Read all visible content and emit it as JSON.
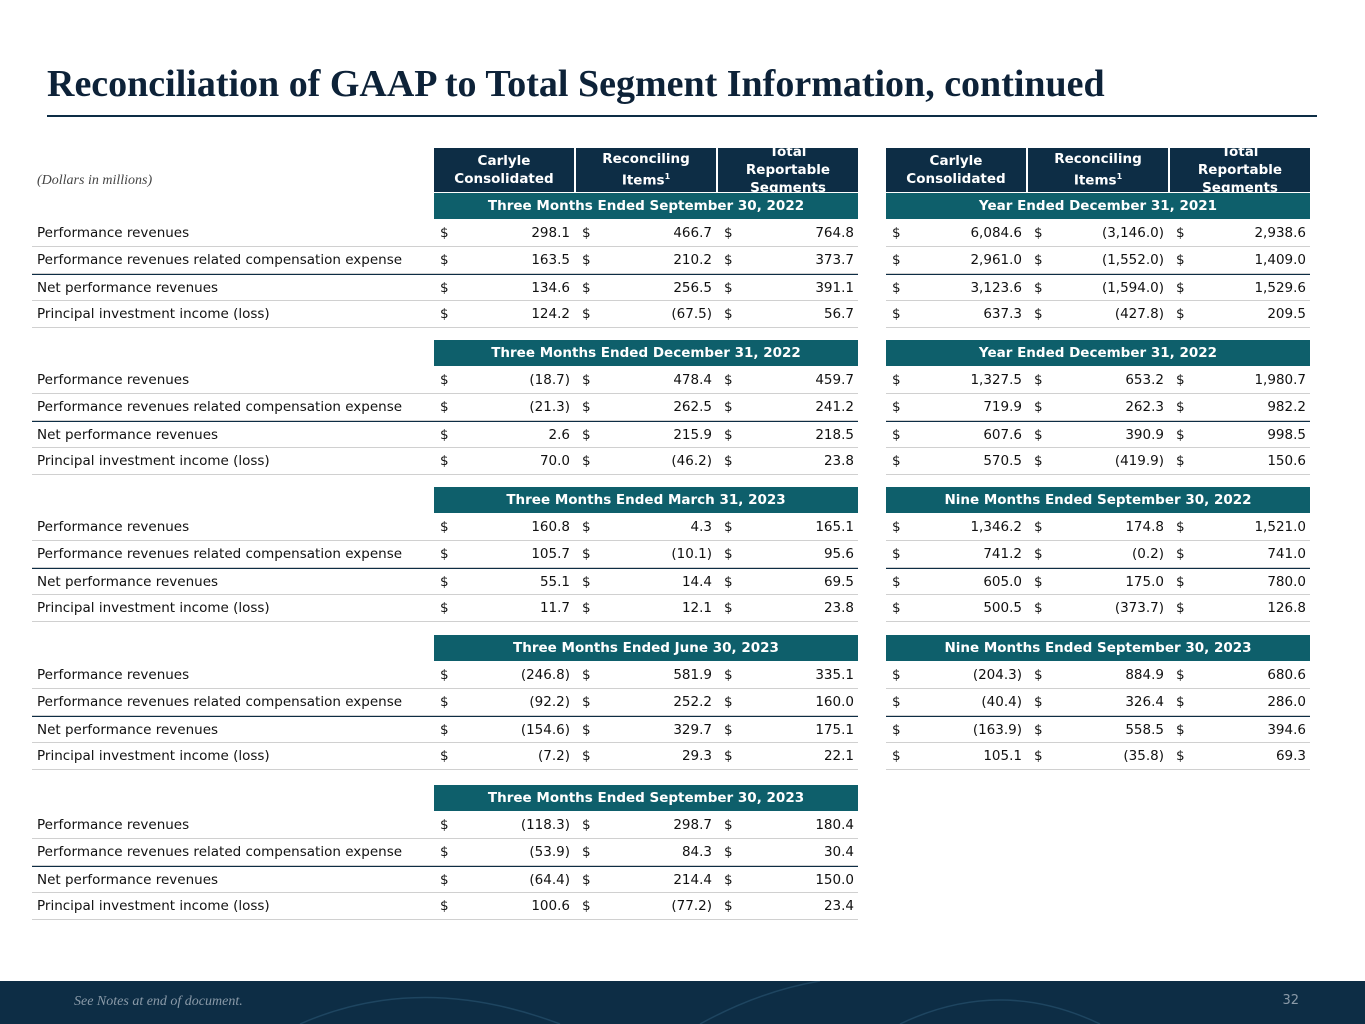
{
  "title": "Reconciliation of GAAP to Total Segment Information, continued",
  "units_note": "(Dollars in millions)",
  "columns": [
    "Carlyle Consolidated",
    "Reconciling Items",
    "Total Reportable Segments"
  ],
  "column_footnote": {
    "column": 1,
    "mark": "1"
  },
  "currency": "$",
  "left_blocks": [
    {
      "period": "Three Months Ended September 30, 2022",
      "rows": [
        {
          "label": "Performance revenues",
          "values": [
            "298.1",
            "466.7",
            "764.8"
          ]
        },
        {
          "label": "Performance revenues related compensation expense",
          "values": [
            "163.5",
            "210.2",
            "373.7"
          ]
        },
        {
          "label": "Net performance revenues",
          "values": [
            "134.6",
            "256.5",
            "391.1"
          ]
        },
        {
          "label": "Principal investment income (loss)",
          "values": [
            "124.2",
            "(67.5)",
            "56.7"
          ]
        }
      ]
    },
    {
      "period": "Three Months Ended December 31, 2022",
      "rows": [
        {
          "label": "Performance revenues",
          "values": [
            "(18.7)",
            "478.4",
            "459.7"
          ]
        },
        {
          "label": "Performance revenues related compensation expense",
          "values": [
            "(21.3)",
            "262.5",
            "241.2"
          ]
        },
        {
          "label": "Net performance revenues",
          "values": [
            "2.6",
            "215.9",
            "218.5"
          ]
        },
        {
          "label": "Principal investment income (loss)",
          "values": [
            "70.0",
            "(46.2)",
            "23.8"
          ]
        }
      ]
    },
    {
      "period": "Three Months Ended March 31, 2023",
      "rows": [
        {
          "label": "Performance revenues",
          "values": [
            "160.8",
            "4.3",
            "165.1"
          ]
        },
        {
          "label": "Performance revenues related compensation expense",
          "values": [
            "105.7",
            "(10.1)",
            "95.6"
          ]
        },
        {
          "label": "Net performance revenues",
          "values": [
            "55.1",
            "14.4",
            "69.5"
          ]
        },
        {
          "label": "Principal investment income (loss)",
          "values": [
            "11.7",
            "12.1",
            "23.8"
          ]
        }
      ]
    },
    {
      "period": "Three Months Ended June 30, 2023",
      "rows": [
        {
          "label": "Performance revenues",
          "values": [
            "(246.8)",
            "581.9",
            "335.1"
          ]
        },
        {
          "label": "Performance revenues related compensation expense",
          "values": [
            "(92.2)",
            "252.2",
            "160.0"
          ]
        },
        {
          "label": "Net performance revenues",
          "values": [
            "(154.6)",
            "329.7",
            "175.1"
          ]
        },
        {
          "label": "Principal investment income (loss)",
          "values": [
            "(7.2)",
            "29.3",
            "22.1"
          ]
        }
      ]
    },
    {
      "period": "Three Months Ended September 30, 2023",
      "rows": [
        {
          "label": "Performance revenues",
          "values": [
            "(118.3)",
            "298.7",
            "180.4"
          ]
        },
        {
          "label": "Performance revenues related compensation expense",
          "values": [
            "(53.9)",
            "84.3",
            "30.4"
          ]
        },
        {
          "label": "Net performance revenues",
          "values": [
            "(64.4)",
            "214.4",
            "150.0"
          ]
        },
        {
          "label": "Principal investment income (loss)",
          "values": [
            "100.6",
            "(77.2)",
            "23.4"
          ]
        }
      ]
    }
  ],
  "right_blocks": [
    {
      "period": "Year Ended December 31, 2021",
      "rows": [
        [
          "6,084.6",
          "(3,146.0)",
          "2,938.6"
        ],
        [
          "2,961.0",
          "(1,552.0)",
          "1,409.0"
        ],
        [
          "3,123.6",
          "(1,594.0)",
          "1,529.6"
        ],
        [
          "637.3",
          "(427.8)",
          "209.5"
        ]
      ]
    },
    {
      "period": "Year Ended December 31, 2022",
      "rows": [
        [
          "1,327.5",
          "653.2",
          "1,980.7"
        ],
        [
          "719.9",
          "262.3",
          "982.2"
        ],
        [
          "607.6",
          "390.9",
          "998.5"
        ],
        [
          "570.5",
          "(419.9)",
          "150.6"
        ]
      ]
    },
    {
      "period": "Nine Months Ended September 30, 2022",
      "rows": [
        [
          "1,346.2",
          "174.8",
          "1,521.0"
        ],
        [
          "741.2",
          "(0.2)",
          "741.0"
        ],
        [
          "605.0",
          "175.0",
          "780.0"
        ],
        [
          "500.5",
          "(373.7)",
          "126.8"
        ]
      ]
    },
    {
      "period": "Nine Months Ended September 30, 2023",
      "rows": [
        [
          "(204.3)",
          "884.9",
          "680.6"
        ],
        [
          "(40.4)",
          "326.4",
          "286.0"
        ],
        [
          "(163.9)",
          "558.5",
          "394.6"
        ],
        [
          "105.1",
          "(35.8)",
          "69.3"
        ]
      ]
    }
  ],
  "footer": {
    "note": "See Notes at end of document.",
    "page": "32"
  }
}
